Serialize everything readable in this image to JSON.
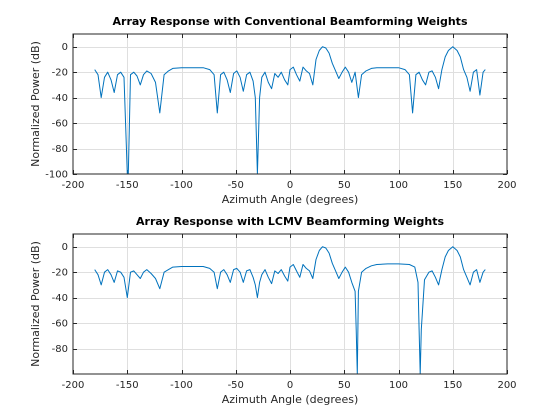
{
  "chart_data": [
    {
      "type": "line",
      "title": "Array Response with Conventional Beamforming Weights",
      "xlabel": "Azimuth Angle (degrees)",
      "ylabel": "Normalized Power (dB)",
      "xlim": [
        -200,
        200
      ],
      "ylim": [
        -100,
        10
      ],
      "xticks": [
        -200,
        -150,
        -100,
        -50,
        0,
        50,
        100,
        150,
        200
      ],
      "yticks": [
        0,
        -20,
        -40,
        -60,
        -80,
        -100
      ],
      "grid": true,
      "color": "#0072bd",
      "series": [
        {
          "x": [
            -180,
            -177,
            -174,
            -171,
            -168,
            -165,
            -162,
            -159,
            -156,
            -153,
            -150,
            -149,
            -147,
            -144,
            -141,
            -138,
            -135,
            -132,
            -128,
            -124,
            -120,
            -116,
            -112,
            -108,
            -100,
            -90,
            -80,
            -74,
            -70,
            -67,
            -64,
            -61,
            -58,
            -55,
            -52,
            -49,
            -46,
            -43,
            -40,
            -37,
            -34,
            -32,
            -30,
            -28,
            -26,
            -23,
            -20,
            -17,
            -14,
            -11,
            -8,
            -5,
            -2,
            0,
            3,
            6,
            9,
            12,
            15,
            18,
            21,
            24,
            27,
            30,
            33,
            36,
            39,
            42,
            45,
            48,
            51,
            54,
            57,
            60,
            63,
            66,
            70,
            75,
            80,
            90,
            100,
            106,
            110,
            113,
            116,
            119,
            122,
            125,
            128,
            131,
            134,
            137,
            140,
            143,
            146,
            150,
            154,
            157,
            160,
            163,
            166,
            169,
            172,
            175,
            178,
            180
          ],
          "y": [
            -18,
            -22,
            -40,
            -24,
            -20,
            -26,
            -36,
            -22,
            -20,
            -24,
            -100,
            -100,
            -22,
            -20,
            -23,
            -30,
            -22,
            -19,
            -21,
            -28,
            -52,
            -22,
            -19,
            -17,
            -16.5,
            -16.5,
            -16.5,
            -18,
            -22,
            -52,
            -22,
            -20,
            -26,
            -36,
            -21,
            -19,
            -24,
            -35,
            -22,
            -20,
            -27,
            -40,
            -100,
            -40,
            -24,
            -20,
            -28,
            -33,
            -21,
            -24,
            -20,
            -26,
            -30,
            -18,
            -16,
            -22,
            -27,
            -16,
            -19,
            -21,
            -30,
            -10,
            -3,
            0,
            -1,
            -5,
            -13,
            -19,
            -25,
            -20,
            -16,
            -20,
            -28,
            -20,
            -40,
            -22,
            -19,
            -17,
            -16.5,
            -16.5,
            -16.5,
            -18,
            -22,
            -52,
            -22,
            -20,
            -26,
            -30,
            -20,
            -19,
            -24,
            -33,
            -18,
            -8,
            -3,
            0,
            -3,
            -8,
            -18,
            -24,
            -35,
            -20,
            -18,
            -38,
            -20,
            -18
          ],
          "min_marks": [
            [
              -151,
              -100
            ],
            [
              -30,
              -100
            ]
          ]
        }
      ]
    },
    {
      "type": "line",
      "title": "Array Response with LCMV Beamforming Weights",
      "xlabel": "Azimuth Angle (degrees)",
      "ylabel": "Normalized Power (dB)",
      "xlim": [
        -200,
        200
      ],
      "ylim": [
        -100,
        10
      ],
      "xticks": [
        -200,
        -150,
        -100,
        -50,
        0,
        50,
        100,
        150,
        200
      ],
      "yticks": [
        0,
        -20,
        -40,
        -60,
        -80
      ],
      "grid": true,
      "color": "#0072bd",
      "series": [
        {
          "x": [
            -180,
            -177,
            -174,
            -171,
            -168,
            -165,
            -162,
            -159,
            -156,
            -153,
            -150,
            -147,
            -144,
            -141,
            -138,
            -135,
            -132,
            -128,
            -124,
            -120,
            -116,
            -112,
            -108,
            -100,
            -90,
            -80,
            -74,
            -70,
            -67,
            -64,
            -61,
            -58,
            -55,
            -52,
            -49,
            -46,
            -43,
            -40,
            -37,
            -34,
            -32,
            -30,
            -28,
            -26,
            -23,
            -20,
            -17,
            -14,
            -11,
            -8,
            -5,
            -2,
            0,
            3,
            6,
            9,
            12,
            15,
            18,
            21,
            24,
            27,
            30,
            33,
            36,
            39,
            42,
            45,
            48,
            51,
            54,
            57,
            60,
            61,
            62,
            63,
            66,
            70,
            75,
            80,
            90,
            100,
            110,
            115,
            118,
            119,
            120,
            121,
            124,
            128,
            131,
            134,
            137,
            140,
            143,
            146,
            150,
            154,
            157,
            160,
            163,
            166,
            169,
            172,
            175,
            178,
            180
          ],
          "y": [
            -18,
            -22,
            -30,
            -20,
            -18,
            -22,
            -28,
            -19,
            -20,
            -24,
            -40,
            -20,
            -19,
            -22,
            -25,
            -20,
            -18,
            -21,
            -25,
            -33,
            -20,
            -18,
            -16,
            -15.5,
            -15.5,
            -15.5,
            -17,
            -20,
            -33,
            -20,
            -18,
            -22,
            -28,
            -18,
            -17,
            -20,
            -28,
            -19,
            -18,
            -24,
            -30,
            -40,
            -28,
            -22,
            -18,
            -24,
            -29,
            -19,
            -21,
            -18,
            -23,
            -27,
            -16,
            -14,
            -19,
            -24,
            -14,
            -17,
            -19,
            -25,
            -10,
            -3,
            0,
            -1,
            -5,
            -13,
            -19,
            -25,
            -20,
            -16,
            -20,
            -28,
            -35,
            -65,
            -100,
            -35,
            -20,
            -17,
            -15,
            -14,
            -13.5,
            -13.5,
            -14,
            -16,
            -28,
            -65,
            -100,
            -65,
            -26,
            -20,
            -19,
            -24,
            -30,
            -18,
            -8,
            -3,
            0,
            -3,
            -8,
            -18,
            -24,
            -30,
            -20,
            -18,
            -28,
            -20,
            -18
          ],
          "min_marks": [
            [
              62,
              -100
            ],
            [
              120,
              -100
            ]
          ]
        }
      ]
    }
  ]
}
